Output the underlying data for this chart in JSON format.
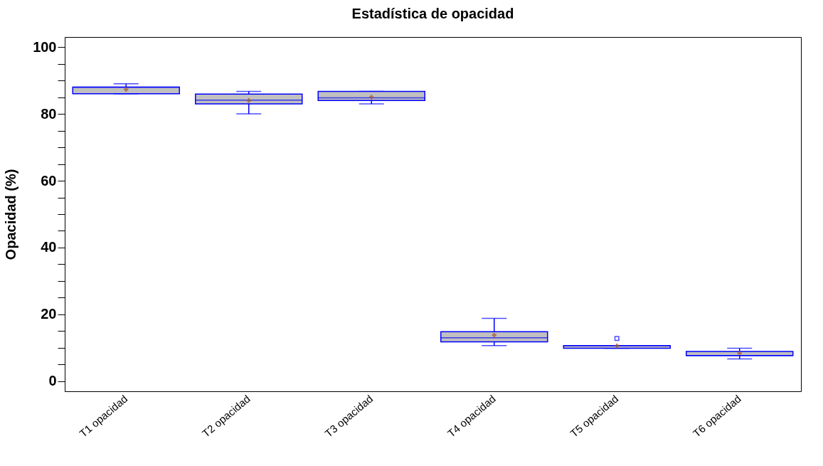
{
  "chart_data": {
    "type": "box",
    "title": "Estadística de opacidad",
    "ylabel": "Opacidad (%)",
    "categories": [
      "T1 opacidad",
      "T2 opacidad",
      "T3 opacidad",
      "T4 opacidad",
      "T5 opacidad",
      "T6 opacidad"
    ],
    "series": [
      {
        "color": "#0000ff",
        "boxes": [
          {
            "low": 86,
            "q1": 86,
            "median": 88,
            "q3": 88,
            "high": 89,
            "mean": 87.3
          },
          {
            "low": 80,
            "q1": 83,
            "median": 84.1,
            "q3": 85.9,
            "high": 86.7,
            "mean": 84
          },
          {
            "low": 83,
            "q1": 84,
            "median": 84.8,
            "q3": 86.7,
            "high": 86.7,
            "mean": 85
          },
          {
            "low": 10.7,
            "q1": 11.8,
            "median": 13,
            "q3": 14.8,
            "high": 18.8,
            "mean": 13.8
          },
          {
            "low": 9.9,
            "q1": 9.9,
            "median": 10.7,
            "q3": 10.7,
            "high": 10.7,
            "mean": 10.6,
            "outliers": [
              12.8
            ]
          },
          {
            "low": 6.7,
            "q1": 7.7,
            "median": 7.7,
            "q3": 8.9,
            "high": 9.9,
            "mean": 8.4
          }
        ]
      }
    ],
    "ylim": [
      -3,
      103
    ],
    "yticks": [
      0,
      {
        "value": 5,
        "label": null
      },
      {
        "value": 10,
        "label": null
      },
      {
        "value": 15,
        "label": null
      },
      20,
      {
        "value": 25,
        "label": null
      },
      {
        "value": 30,
        "label": null
      },
      {
        "value": 35,
        "label": null
      },
      40,
      {
        "value": 45,
        "label": null
      },
      {
        "value": 50,
        "label": null
      },
      {
        "value": 55,
        "label": null
      },
      60,
      {
        "value": 65,
        "label": null
      },
      {
        "value": 70,
        "label": null
      },
      {
        "value": 75,
        "label": null
      },
      80,
      {
        "value": 85,
        "label": null
      },
      {
        "value": 90,
        "label": null
      },
      {
        "value": 95,
        "label": null
      },
      100
    ],
    "grid": false
  }
}
